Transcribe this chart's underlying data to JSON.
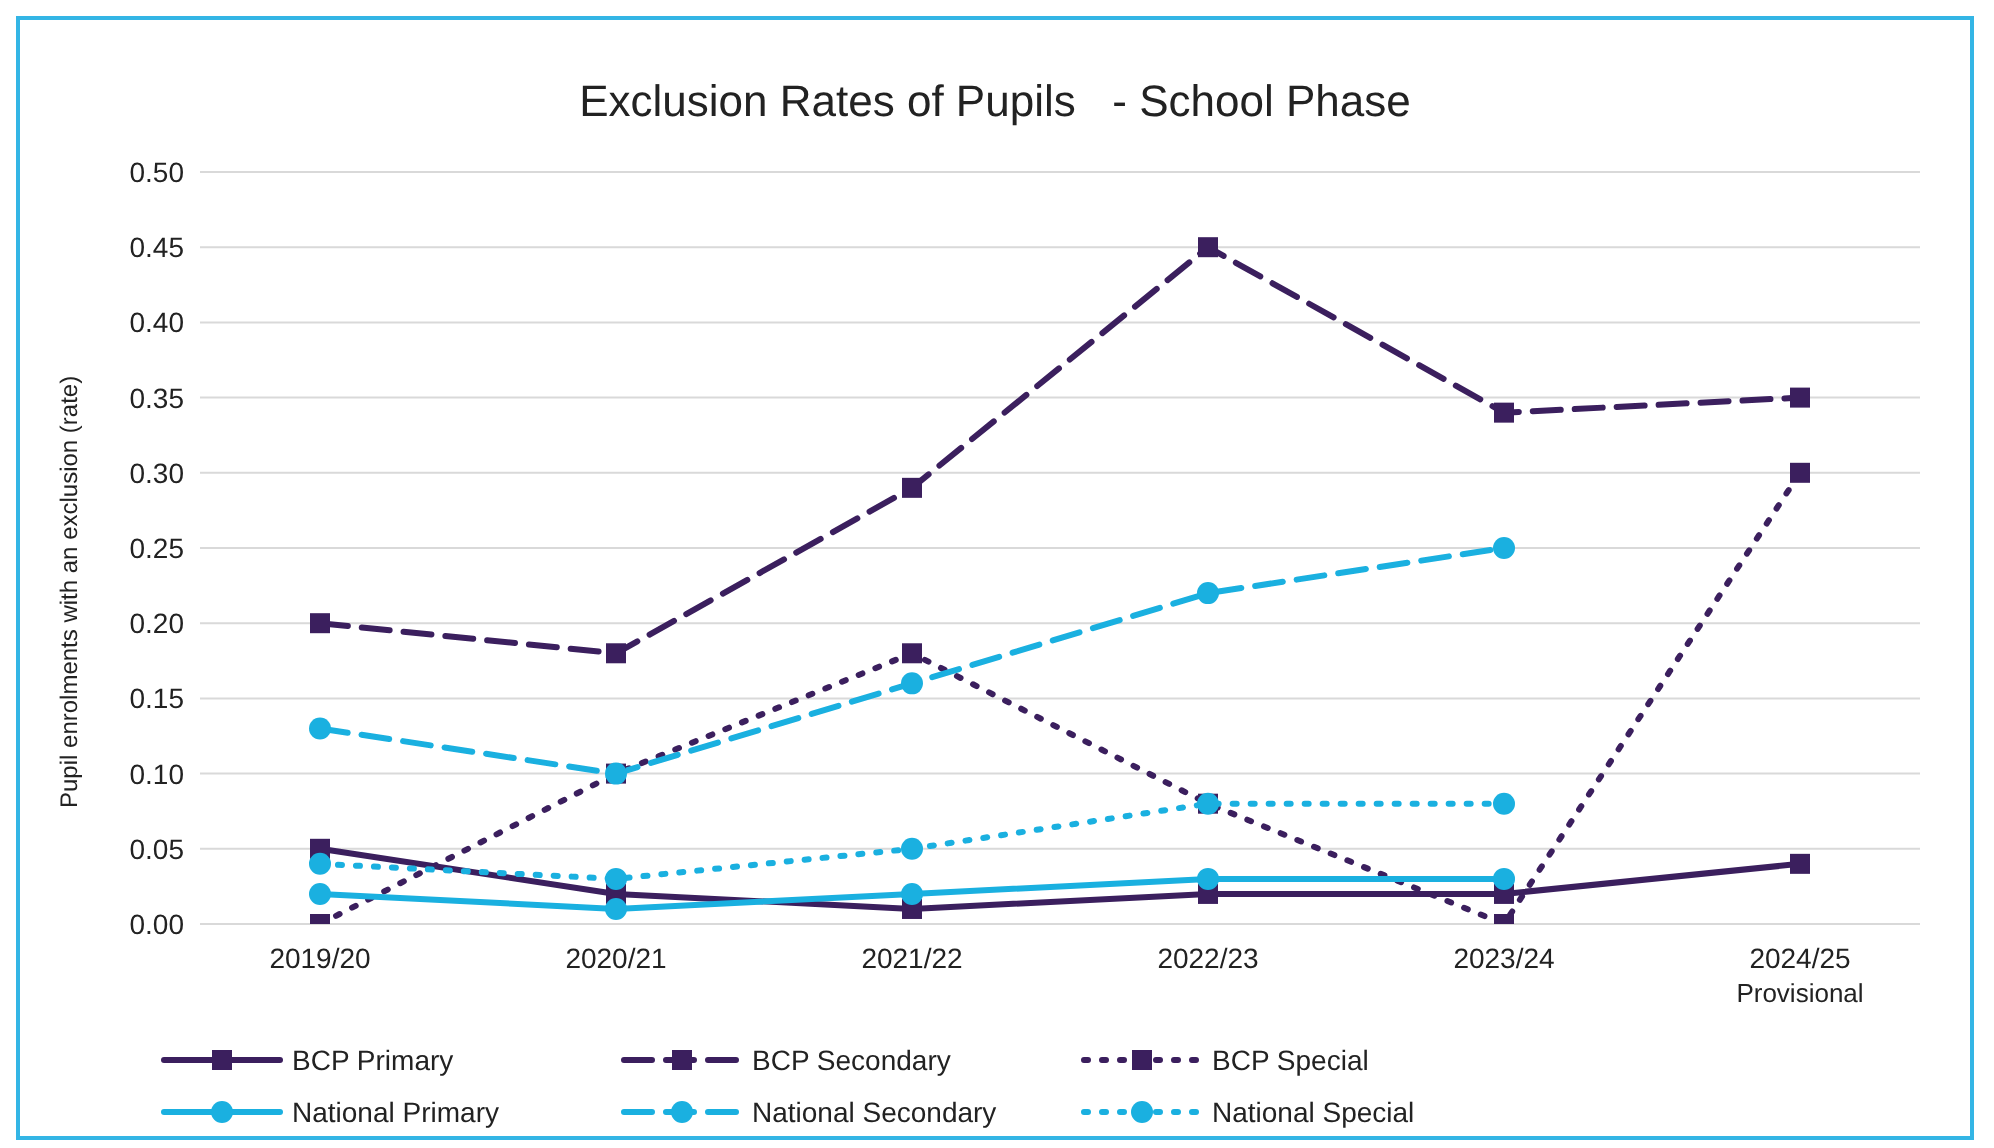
{
  "chart_data": {
    "type": "line",
    "title": "Exclusion Rates of Pupils   - School Phase",
    "ylabel": "Pupil enrolments with an exclusion (rate)",
    "categories": [
      "2019/20",
      "2020/21",
      "2021/22",
      "2022/23",
      "2023/24",
      "2024/25\nProvisional"
    ],
    "ylim": [
      0,
      0.5
    ],
    "yticks": [
      {
        "value": 0,
        "label": "0.00"
      },
      {
        "value": 0.05,
        "label": "0.05"
      },
      {
        "value": 0.1,
        "label": "0.10"
      },
      {
        "value": 0.15,
        "label": "0.15"
      },
      {
        "value": 0.2,
        "label": "0.20"
      },
      {
        "value": 0.25,
        "label": "0.25"
      },
      {
        "value": 0.3,
        "label": "0.30"
      },
      {
        "value": 0.35,
        "label": "0.35"
      },
      {
        "value": 0.4,
        "label": "0.40"
      },
      {
        "value": 0.45,
        "label": "0.45"
      },
      {
        "value": 0.5,
        "label": "0.50"
      }
    ],
    "grid": "y",
    "legend": "bottom",
    "series": [
      {
        "name": "BCP Primary",
        "color": "#3b1f5e",
        "marker": "square",
        "line_style": "solid",
        "values": [
          0.05,
          0.02,
          0.01,
          0.02,
          0.02,
          0.04
        ]
      },
      {
        "name": "BCP Secondary",
        "color": "#3b1f5e",
        "marker": "square",
        "line_style": "dashed",
        "values": [
          0.2,
          0.18,
          0.29,
          0.45,
          0.34,
          0.35
        ]
      },
      {
        "name": "BCP Special",
        "color": "#3b1f5e",
        "marker": "square",
        "line_style": "dotted",
        "values": [
          0,
          0.1,
          0.18,
          0.08,
          0,
          0.3
        ]
      },
      {
        "name": "National Primary",
        "color": "#1ab0e0",
        "marker": "circle",
        "line_style": "solid",
        "values": [
          0.02,
          0.01,
          0.02,
          0.03,
          0.03,
          null
        ]
      },
      {
        "name": "National Secondary",
        "color": "#1ab0e0",
        "marker": "circle",
        "line_style": "dashed",
        "values": [
          0.13,
          0.1,
          0.16,
          0.22,
          0.25,
          null
        ]
      },
      {
        "name": "National Special",
        "color": "#1ab0e0",
        "marker": "circle",
        "line_style": "dotted",
        "values": [
          0.04,
          0.03,
          0.05,
          0.08,
          0.08,
          null
        ]
      }
    ]
  }
}
